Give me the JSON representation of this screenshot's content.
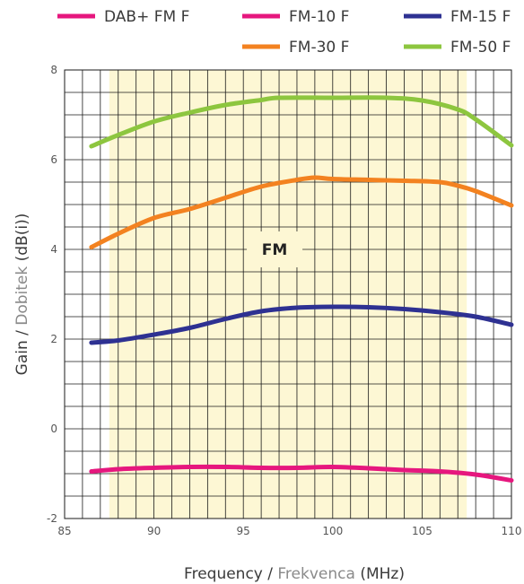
{
  "chart_data": {
    "type": "line",
    "x_axis": {
      "label_parts": [
        "Frequency / ",
        "Frekvenca",
        " (MHz)"
      ],
      "label_colors": [
        "#3a3a3a",
        "#8a8a8a",
        "#3a3a3a"
      ],
      "range": [
        85,
        110
      ],
      "ticks": [
        "85",
        "90",
        "95",
        "100",
        "105",
        "110"
      ],
      "tick_values": [
        85,
        90,
        95,
        100,
        105,
        110
      ]
    },
    "y_axis": {
      "label_parts": [
        "Gain / ",
        "Dobitek",
        " (dB(i))"
      ],
      "label_colors": [
        "#3a3a3a",
        "#8a8a8a",
        "#3a3a3a"
      ],
      "range": [
        -2,
        8
      ],
      "ticks": [
        "-2",
        "0",
        "2",
        "4",
        "6",
        "8"
      ],
      "tick_values": [
        -2,
        0,
        2,
        4,
        6,
        8
      ]
    },
    "grid": true,
    "band": {
      "label": "FM",
      "from": 87.5,
      "to": 107.5,
      "color": "#fdf7d4"
    },
    "legend_position": "top",
    "series": [
      {
        "name": "DAB+ FM F",
        "color": "#e6177e",
        "x": [],
        "y": []
      },
      {
        "name": "FM-10 F",
        "color": "#e6177e",
        "x": [
          86.5,
          88,
          90,
          92,
          94,
          96,
          98,
          100,
          102,
          104,
          106,
          108,
          110
        ],
        "y": [
          -0.95,
          -0.9,
          -0.87,
          -0.85,
          -0.85,
          -0.87,
          -0.87,
          -0.85,
          -0.88,
          -0.92,
          -0.95,
          -1.02,
          -1.15
        ]
      },
      {
        "name": "FM-15 F",
        "color": "#2e3192",
        "x": [
          86.5,
          88,
          90,
          92,
          94,
          96,
          98,
          100,
          102,
          104,
          106,
          108,
          110
        ],
        "y": [
          1.92,
          1.97,
          2.1,
          2.25,
          2.45,
          2.62,
          2.7,
          2.72,
          2.71,
          2.67,
          2.6,
          2.5,
          2.32
        ]
      },
      {
        "name": "FM-30 F",
        "color": "#f38220",
        "x": [
          86.5,
          88,
          90,
          92,
          94,
          96,
          98,
          99,
          100,
          102,
          104,
          106,
          107,
          108,
          110
        ],
        "y": [
          4.05,
          4.35,
          4.7,
          4.9,
          5.15,
          5.4,
          5.55,
          5.6,
          5.57,
          5.55,
          5.53,
          5.5,
          5.42,
          5.3,
          4.98
        ]
      },
      {
        "name": "FM-50 F",
        "color": "#8dc63f",
        "x": [
          86.5,
          88,
          90,
          92,
          94,
          96,
          97,
          100,
          103,
          105,
          107,
          108,
          110
        ],
        "y": [
          6.3,
          6.55,
          6.85,
          7.05,
          7.22,
          7.33,
          7.38,
          7.38,
          7.38,
          7.32,
          7.12,
          6.9,
          6.32
        ]
      }
    ]
  }
}
